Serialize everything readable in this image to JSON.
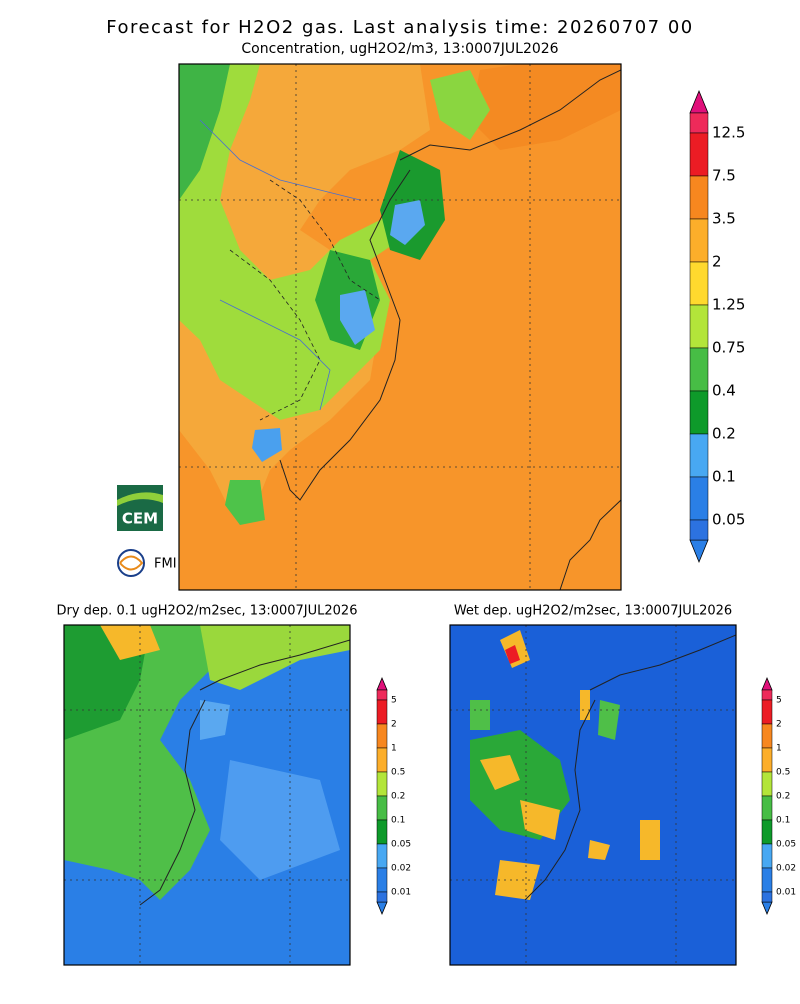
{
  "title": "Forecast for H2O2 gas. Last analysis time: 20260707 00",
  "subtitle": "Concentration, ugH2O2/m3, 13:0007JUL2026",
  "main_colorbar": {
    "labels": [
      "12.5",
      "7.5",
      "3.5",
      "2",
      "1.25",
      "0.75",
      "0.4",
      "0.2",
      "0.1",
      "0.05"
    ]
  },
  "panels": [
    {
      "title": "Dry dep. 0.1 ugH2O2/m2sec, 13:0007JUL2026",
      "colorbar_labels": [
        "5",
        "2",
        "1",
        "0.5",
        "0.2",
        "0.1",
        "0.05",
        "0.02",
        "0.01"
      ]
    },
    {
      "title": "Wet dep. ugH2O2/m2sec, 13:0007JUL2026",
      "colorbar_labels": [
        "5",
        "2",
        "1",
        "0.5",
        "0.2",
        "0.1",
        "0.05",
        "0.02",
        "0.01"
      ]
    }
  ],
  "logos": {
    "cem": "CEM",
    "fmi": "FMI"
  }
}
